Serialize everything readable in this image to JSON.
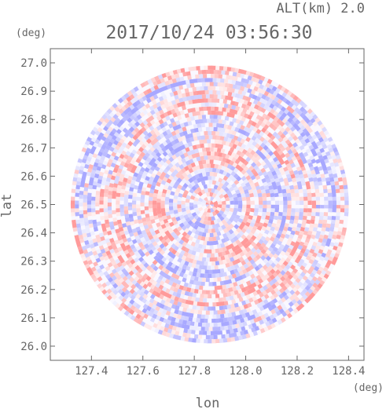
{
  "header": {
    "alt_label": "ALT(km) 2.0",
    "datetime": "2017/10/24 03:56:30",
    "y_unit": "(deg)",
    "x_unit": "(deg)"
  },
  "colors": {
    "axis": "#666666",
    "positive": "#ff9a9a",
    "negative": "#a8a8ff",
    "neutral": "#ffffff"
  },
  "chart_data": {
    "type": "heatmap",
    "title": "2017/10/24 03:56:30",
    "subtitle": "ALT(km) 2.0",
    "xlabel": "lon",
    "ylabel": "lat",
    "x_unit": "(deg)",
    "y_unit": "(deg)",
    "xlim": [
      127.24,
      128.46
    ],
    "ylim": [
      25.95,
      27.05
    ],
    "x_ticks": [
      127.4,
      127.6,
      127.8,
      128.0,
      128.2,
      128.4
    ],
    "x_tick_labels": [
      "127.4",
      "127.6",
      "127.8",
      "128.0",
      "128.2",
      "128.4"
    ],
    "y_ticks": [
      26.0,
      26.1,
      26.2,
      26.3,
      26.4,
      26.5,
      26.6,
      26.7,
      26.8,
      26.9,
      27.0
    ],
    "y_tick_labels": [
      "26.0",
      "26.1",
      "26.2",
      "26.3",
      "26.4",
      "26.5",
      "26.6",
      "26.7",
      "26.8",
      "26.9",
      "27.0"
    ],
    "radar_center": {
      "lon": 127.86,
      "lat": 26.5
    },
    "radar_range_lat": 0.49,
    "grid": false,
    "colormap": "diverging blue-white-red"
  }
}
